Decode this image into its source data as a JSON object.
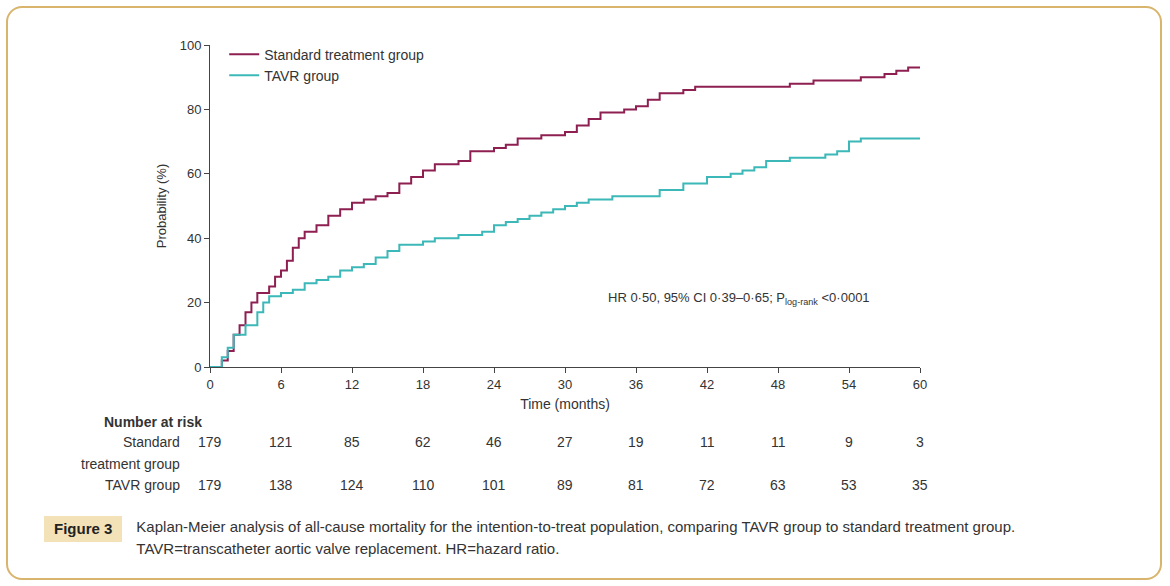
{
  "chart_data": {
    "type": "line",
    "x_label": "Time (months)",
    "y_label": "Probability (%)",
    "xlim": [
      0,
      60
    ],
    "xticks": [
      0,
      6,
      12,
      18,
      24,
      30,
      36,
      42,
      48,
      54,
      60
    ],
    "ylim": [
      0,
      100
    ],
    "yticks": [
      0,
      20,
      40,
      60,
      80,
      100
    ],
    "grid": false,
    "legend": "upper left",
    "line_style": "step",
    "series": [
      {
        "name": "Standard treatment group",
        "color": "#8e1f51",
        "x": [
          0,
          1,
          1.5,
          2,
          2.5,
          3,
          3.5,
          4,
          5,
          5.5,
          6,
          6.5,
          7,
          7.5,
          8,
          9,
          10,
          11,
          12,
          13,
          14,
          15,
          16,
          17,
          18,
          19,
          21,
          22,
          24,
          25,
          26,
          28,
          30,
          31,
          32,
          33,
          35,
          36,
          37,
          38,
          40,
          41,
          48,
          49,
          51,
          55,
          57,
          58,
          59,
          60
        ],
        "values": [
          0,
          2,
          5,
          10,
          13,
          17,
          20,
          23,
          25,
          28,
          30,
          33,
          37,
          40,
          42,
          44,
          47,
          49,
          51,
          52,
          53,
          54,
          57,
          59,
          61,
          63,
          64,
          67,
          68,
          69,
          71,
          72,
          73,
          75,
          77,
          79,
          80,
          81,
          83,
          85,
          86,
          87,
          87,
          88,
          89,
          90,
          91,
          92,
          93,
          93
        ]
      },
      {
        "name": "TAVR group",
        "color": "#3cb8b8",
        "x": [
          0,
          1,
          1.5,
          2,
          3,
          4,
          4.5,
          5,
          6,
          7,
          8,
          9,
          10,
          11,
          12,
          13,
          14,
          15,
          16,
          18,
          19,
          21,
          23,
          24,
          25,
          26,
          27,
          28,
          29,
          30,
          31,
          32,
          34,
          37,
          38,
          40,
          42,
          44,
          45,
          46,
          47,
          49,
          52,
          53,
          54,
          55,
          60
        ],
        "values": [
          0,
          3,
          6,
          10,
          13,
          17,
          20,
          22,
          23,
          24,
          26,
          27,
          28,
          30,
          31,
          32,
          34,
          36,
          38,
          39,
          40,
          41,
          42,
          44,
          45,
          46,
          47,
          48,
          49,
          50,
          51,
          52,
          53,
          53,
          55,
          57,
          59,
          60,
          61,
          62,
          64,
          65,
          66,
          67,
          70,
          71,
          71
        ]
      }
    ],
    "annotation": {
      "text": "HR 0·50, 95% CI 0·39–0·65; P",
      "subscript": "log-rank",
      "text_after": " <0·0001"
    },
    "number_at_risk": {
      "title": "Number at risk",
      "rows": [
        {
          "label_lines": [
            "Standard",
            "treatment group"
          ],
          "values": [
            179,
            121,
            85,
            62,
            46,
            27,
            19,
            11,
            11,
            9,
            3
          ]
        },
        {
          "label_lines": [
            "TAVR group"
          ],
          "values": [
            179,
            138,
            124,
            110,
            101,
            89,
            81,
            72,
            63,
            53,
            35
          ]
        }
      ]
    },
    "caption": {
      "label": "Figure 3",
      "text": "Kaplan-Meier analysis of all-cause mortality for the intention-to-treat population, comparing TAVR group to standard treatment group. TAVR=transcatheter aortic valve replacement. HR=hazard ratio."
    }
  }
}
